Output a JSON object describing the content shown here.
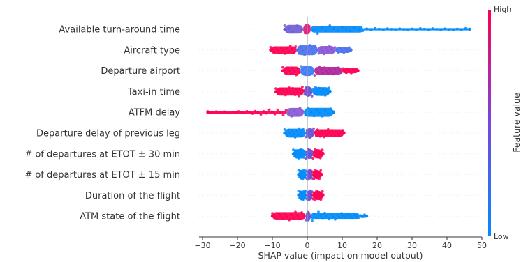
{
  "chart_data": {
    "type": "scatter",
    "subtype": "shap-beeswarm",
    "title": "",
    "xlabel": "SHAP value (impact on model output)",
    "ylabel": "",
    "xlim": [
      -31,
      50
    ],
    "xticks": [
      -30,
      -20,
      -10,
      0,
      10,
      20,
      30,
      40,
      50
    ],
    "grid": false,
    "colorbar": {
      "label": "Feature value",
      "high_label": "High",
      "low_label": "Low",
      "low_color": "#008bfb",
      "high_color": "#ff0052"
    },
    "features": [
      {
        "name": "Available turn-around time",
        "min": -6.5,
        "max": 46.5,
        "segments": [
          {
            "from": -6.5,
            "to": -1.2,
            "color": "#6e5cd6"
          },
          {
            "from": -1.2,
            "to": 1.0,
            "color": "#e0187a"
          },
          {
            "from": 1.0,
            "to": 16,
            "color": "#008bfb"
          },
          {
            "from": 16,
            "to": 46.5,
            "color": "#008bfb"
          }
        ]
      },
      {
        "name": "Aircraft type",
        "min": -10.5,
        "max": 12.5,
        "segments": [
          {
            "from": -10.5,
            "to": -3,
            "color": "#ff0052"
          },
          {
            "from": -3,
            "to": 3,
            "color": "#4a72ee"
          },
          {
            "from": 3,
            "to": 8,
            "color": "#8a56d6"
          },
          {
            "from": 8,
            "to": 12.5,
            "color": "#4a72ee"
          }
        ]
      },
      {
        "name": "Departure airport",
        "min": -7,
        "max": 14.5,
        "segments": [
          {
            "from": -7,
            "to": -2,
            "color": "#ff0052"
          },
          {
            "from": -2,
            "to": 2,
            "color": "#3b7cf4"
          },
          {
            "from": 2,
            "to": 10,
            "color": "#b0279a"
          },
          {
            "from": 10,
            "to": 14.5,
            "color": "#ff0052"
          }
        ]
      },
      {
        "name": "Taxi-in time",
        "min": -9,
        "max": 6.5,
        "segments": [
          {
            "from": -9,
            "to": -1,
            "color": "#ff0052"
          },
          {
            "from": -1,
            "to": 1.5,
            "color": "#6b4fd4"
          },
          {
            "from": 1.5,
            "to": 6.5,
            "color": "#008bfb"
          }
        ]
      },
      {
        "name": "ATFM delay",
        "min": -28.5,
        "max": 7.5,
        "segments": [
          {
            "from": -28.5,
            "to": -6,
            "color": "#ff0052"
          },
          {
            "from": -6,
            "to": -1,
            "color": "#8a56d6"
          },
          {
            "from": -1,
            "to": 7.5,
            "color": "#008bfb"
          }
        ]
      },
      {
        "name": "Departure delay of previous leg",
        "min": -6.5,
        "max": 10.5,
        "segments": [
          {
            "from": -6.5,
            "to": -0.5,
            "color": "#008bfb"
          },
          {
            "from": -0.5,
            "to": 2,
            "color": "#6b4fd4"
          },
          {
            "from": 2,
            "to": 10.5,
            "color": "#ff0052"
          }
        ]
      },
      {
        "name": "# of departures at ETOT ± 30 min",
        "min": -4,
        "max": 4.5,
        "segments": [
          {
            "from": -4,
            "to": -0.5,
            "color": "#008bfb"
          },
          {
            "from": -0.5,
            "to": 1.5,
            "color": "#6b4fd4"
          },
          {
            "from": 1.5,
            "to": 4.5,
            "color": "#ff0052"
          }
        ]
      },
      {
        "name": "# of departures at ETOT ± 15 min",
        "min": -2.5,
        "max": 4,
        "segments": [
          {
            "from": -2.5,
            "to": -0.3,
            "color": "#008bfb"
          },
          {
            "from": -0.3,
            "to": 1.5,
            "color": "#6b4fd4"
          },
          {
            "from": 1.5,
            "to": 4,
            "color": "#ff0052"
          }
        ]
      },
      {
        "name": "Duration of the flight",
        "min": -2.5,
        "max": 4.5,
        "segments": [
          {
            "from": -2.5,
            "to": -0.3,
            "color": "#008bfb"
          },
          {
            "from": -0.3,
            "to": 1.5,
            "color": "#6b4fd4"
          },
          {
            "from": 1.5,
            "to": 4.5,
            "color": "#ff0052"
          }
        ]
      },
      {
        "name": "ATM state of the flight",
        "min": -10,
        "max": 17,
        "segments": [
          {
            "from": -10,
            "to": -0.5,
            "color": "#ff0052"
          },
          {
            "from": -0.5,
            "to": 1,
            "color": "#6b4fd4"
          },
          {
            "from": 1,
            "to": 15,
            "color": "#008bfb"
          },
          {
            "from": 15,
            "to": 17,
            "color": "#008bfb"
          }
        ]
      }
    ]
  }
}
